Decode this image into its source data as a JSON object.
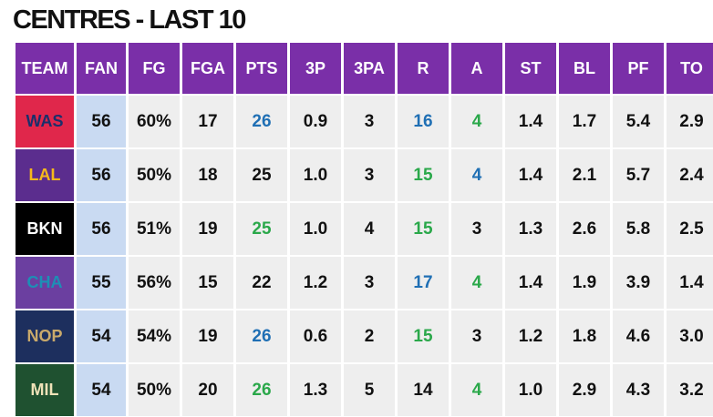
{
  "title": "CENTRES - LAST 10",
  "headers": [
    "TEAM",
    "FAN",
    "FG",
    "FGA",
    "PTS",
    "3P",
    "3PA",
    "R",
    "A",
    "ST",
    "BL",
    "PF",
    "TO"
  ],
  "colors": {
    "header_bg": "#7a2fa8",
    "fan_bg": "#c9daf2",
    "cell_bg": "#eeeeee",
    "highlight_blue": "#1f6fb4",
    "highlight_green": "#2aa84a"
  },
  "rows": [
    {
      "team": "WAS",
      "team_bg": "#e0274b",
      "team_fg": "#1b2f6b",
      "cells": [
        "56",
        "60%",
        "17",
        "26",
        "0.9",
        "3",
        "16",
        "4",
        "1.4",
        "1.7",
        "5.4",
        "2.9"
      ],
      "colors": [
        "",
        "",
        "",
        "blue",
        "",
        "",
        "blue",
        "green",
        "",
        "",
        "",
        ""
      ]
    },
    {
      "team": "LAL",
      "team_bg": "#5b2d8e",
      "team_fg": "#f5b81b",
      "cells": [
        "56",
        "50%",
        "18",
        "25",
        "1.0",
        "3",
        "15",
        "4",
        "1.4",
        "2.1",
        "5.7",
        "2.4"
      ],
      "colors": [
        "",
        "",
        "",
        "",
        "",
        "",
        "green",
        "blue",
        "",
        "",
        "",
        ""
      ]
    },
    {
      "team": "BKN",
      "team_bg": "#000000",
      "team_fg": "#ffffff",
      "cells": [
        "56",
        "51%",
        "19",
        "25",
        "1.0",
        "4",
        "15",
        "3",
        "1.3",
        "2.6",
        "5.8",
        "2.5"
      ],
      "colors": [
        "",
        "",
        "",
        "green",
        "",
        "",
        "green",
        "",
        "",
        "",
        "",
        ""
      ]
    },
    {
      "team": "CHA",
      "team_bg": "#6b3fa0",
      "team_fg": "#1d8fb5",
      "cells": [
        "55",
        "56%",
        "15",
        "22",
        "1.2",
        "3",
        "17",
        "4",
        "1.4",
        "1.9",
        "3.9",
        "1.4"
      ],
      "colors": [
        "",
        "",
        "",
        "",
        "",
        "",
        "blue",
        "green",
        "",
        "",
        "",
        ""
      ]
    },
    {
      "team": "NOP",
      "team_bg": "#1d2f5e",
      "team_fg": "#c9a96b",
      "cells": [
        "54",
        "54%",
        "19",
        "26",
        "0.6",
        "2",
        "15",
        "3",
        "1.2",
        "1.8",
        "4.6",
        "3.0"
      ],
      "colors": [
        "",
        "",
        "",
        "blue",
        "",
        "",
        "green",
        "",
        "",
        "",
        "",
        ""
      ]
    },
    {
      "team": "MIL",
      "team_bg": "#1f5130",
      "team_fg": "#efe2b8",
      "cells": [
        "54",
        "50%",
        "20",
        "26",
        "1.3",
        "5",
        "14",
        "4",
        "1.0",
        "2.9",
        "4.3",
        "3.2"
      ],
      "colors": [
        "",
        "",
        "",
        "green",
        "",
        "",
        "",
        "green",
        "",
        "",
        "",
        ""
      ]
    }
  ]
}
